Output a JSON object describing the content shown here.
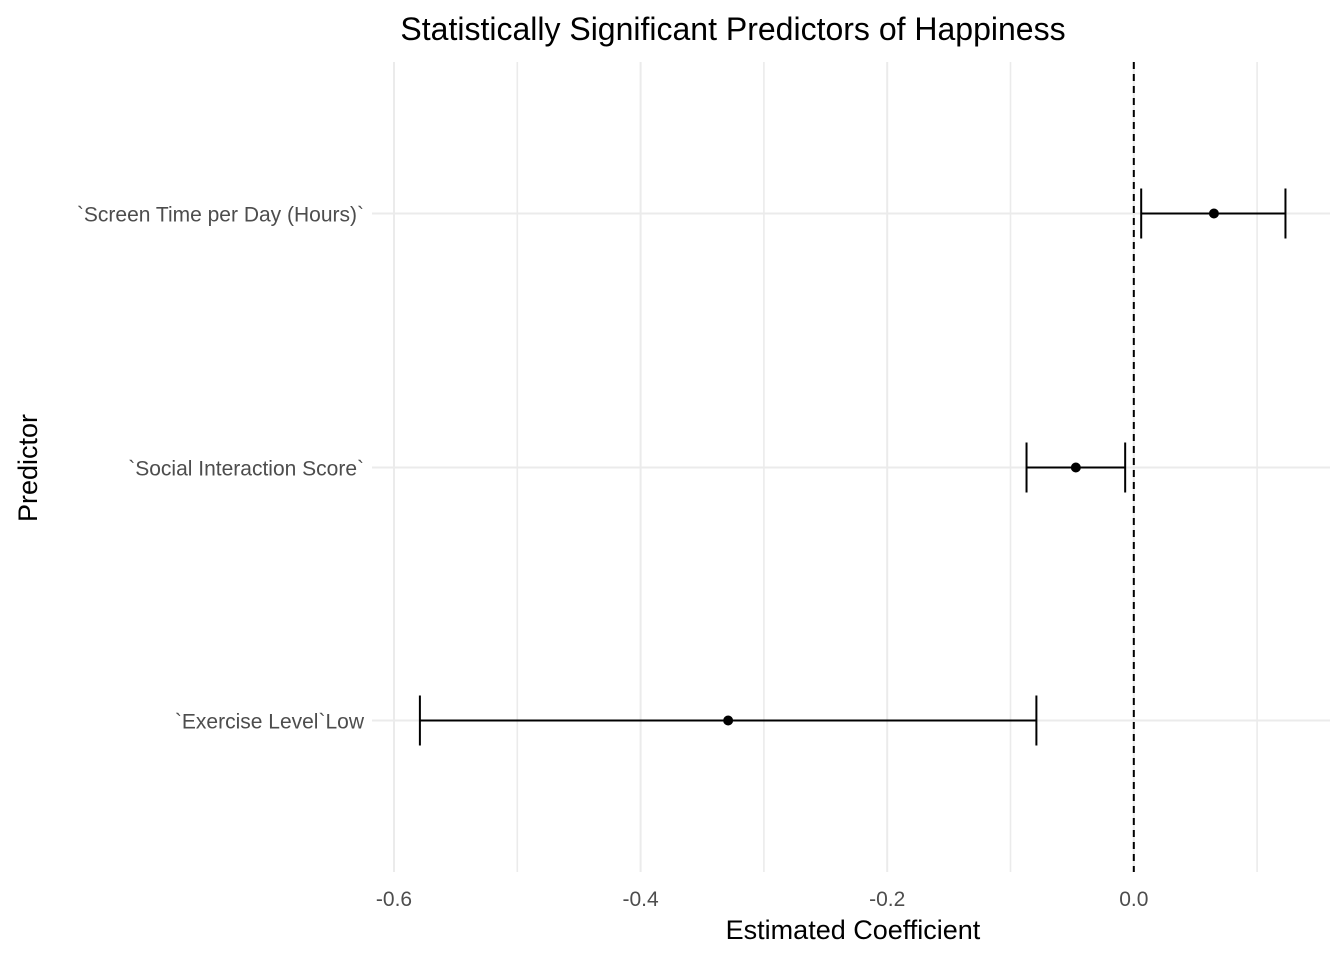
{
  "chart_data": {
    "type": "errorbar",
    "title": "Statistically Significant Predictors of Happiness",
    "xlabel": "Estimated Coefficient",
    "ylabel": "Predictor",
    "xlim": [
      -0.6,
      0.16
    ],
    "x_ticks": [
      -0.6,
      -0.4,
      -0.2,
      0.0
    ],
    "x_tick_labels": [
      "-0.6",
      "-0.4",
      "-0.2",
      "0.0"
    ],
    "reference_line": {
      "x": 0.0,
      "style": "dashed"
    },
    "grid": true,
    "series": [
      {
        "points": [
          {
            "label": "`Screen Time per Day (Hours)`",
            "estimate": 0.065,
            "lower": 0.006,
            "upper": 0.123
          },
          {
            "label": "`Social Interaction Score`",
            "estimate": -0.047,
            "lower": -0.087,
            "upper": -0.007
          },
          {
            "label": "`Exercise Level`Low",
            "estimate": -0.329,
            "lower": -0.579,
            "upper": -0.079
          }
        ]
      }
    ],
    "colors": {
      "marks": "#000000",
      "grid": "#ebebeb",
      "tick_text": "#4d4d4d"
    }
  }
}
